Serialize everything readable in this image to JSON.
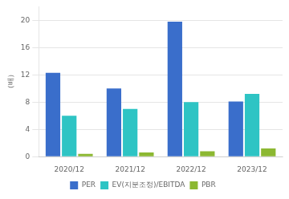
{
  "chart_data": {
    "type": "bar",
    "ylabel": "（배）",
    "categories": [
      "2020/12",
      "2021/12",
      "2022/12",
      "2023/12"
    ],
    "series": [
      {
        "name": "PER",
        "color": "#3a6ecb",
        "values": [
          12.3,
          10.0,
          19.8,
          8.1
        ]
      },
      {
        "name": "EV(지분조정)/EBITDA",
        "color": "#2ec4c4",
        "values": [
          6.0,
          7.0,
          8.0,
          9.2
        ]
      },
      {
        "name": "PBR",
        "color": "#8cb832",
        "values": [
          0.4,
          0.6,
          0.8,
          1.2
        ]
      }
    ],
    "ylim": [
      0,
      22
    ],
    "yticks": [
      0,
      4,
      8,
      12,
      16,
      20
    ],
    "grid": true,
    "legend": "bottom"
  }
}
